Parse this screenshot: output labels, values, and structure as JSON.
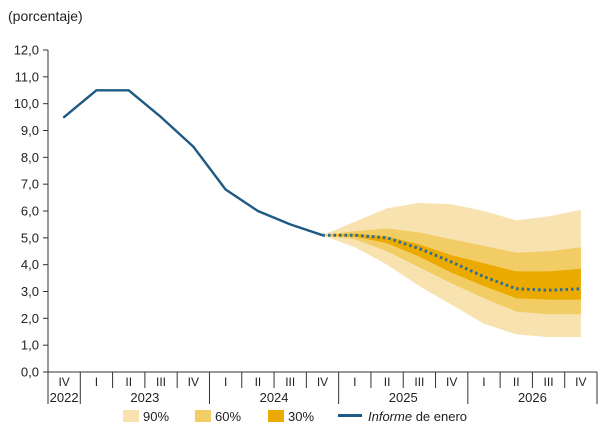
{
  "chart_data": {
    "type": "line",
    "unit_label": "(porcentaje)",
    "ylim": [
      0,
      12
    ],
    "y_ticks": [
      "0,0",
      "1,0",
      "2,0",
      "3,0",
      "4,0",
      "5,0",
      "6,0",
      "7,0",
      "8,0",
      "9,0",
      "10,0",
      "11,0",
      "12,0"
    ],
    "quarters": [
      "IV",
      "I",
      "II",
      "III",
      "IV",
      "I",
      "II",
      "III",
      "IV",
      "I",
      "II",
      "III",
      "IV",
      "I",
      "II",
      "III",
      "IV"
    ],
    "years": [
      {
        "label": "2022",
        "start": 0,
        "end": 0
      },
      {
        "label": "2023",
        "start": 1,
        "end": 4
      },
      {
        "label": "2024",
        "start": 5,
        "end": 8
      },
      {
        "label": "2025",
        "start": 9,
        "end": 12
      },
      {
        "label": "2026",
        "start": 13,
        "end": 16
      }
    ],
    "history": {
      "x": [
        0,
        1,
        2,
        3,
        4,
        5,
        6,
        7,
        8
      ],
      "values": [
        9.5,
        10.5,
        10.5,
        9.5,
        8.4,
        6.8,
        6.0,
        5.5,
        5.1
      ]
    },
    "fan": {
      "x": [
        8,
        9,
        10,
        11,
        12,
        13,
        14,
        15,
        16
      ],
      "bands": [
        {
          "name": "90%",
          "color": "#f8e3b0",
          "upper": [
            5.1,
            5.6,
            6.1,
            6.3,
            6.25,
            6.0,
            5.65,
            5.8,
            6.05
          ],
          "lower": [
            5.1,
            4.65,
            4.0,
            3.2,
            2.5,
            1.8,
            1.4,
            1.3,
            1.3
          ]
        },
        {
          "name": "60%",
          "color": "#f2cd66",
          "upper": [
            5.1,
            5.25,
            5.35,
            5.2,
            4.95,
            4.7,
            4.45,
            4.5,
            4.65
          ],
          "lower": [
            5.1,
            4.95,
            4.5,
            3.9,
            3.3,
            2.75,
            2.25,
            2.15,
            2.15
          ]
        },
        {
          "name": "30%",
          "color": "#ebaa00",
          "upper": [
            5.1,
            5.15,
            5.05,
            4.75,
            4.35,
            4.05,
            3.75,
            3.75,
            3.85
          ],
          "lower": [
            5.1,
            5.05,
            4.8,
            4.3,
            3.7,
            3.2,
            2.75,
            2.7,
            2.7
          ]
        }
      ]
    },
    "projection": {
      "name": "Informe de enero",
      "x": [
        8,
        9,
        10,
        11,
        12,
        13,
        14,
        15,
        16
      ],
      "values": [
        5.1,
        5.1,
        5.0,
        4.6,
        4.1,
        3.55,
        3.1,
        3.05,
        3.1
      ]
    },
    "legend": [
      {
        "label": "90%",
        "kind": "box",
        "color": "#f8e3b0"
      },
      {
        "label": "60%",
        "kind": "box",
        "color": "#f2cd66"
      },
      {
        "label": "30%",
        "kind": "box",
        "color": "#ebaa00"
      },
      {
        "label_italic": "Informe",
        "label_rest": " de enero",
        "kind": "line",
        "color": "#1f5a85"
      }
    ],
    "colors": {
      "line": "#1f5a85",
      "dots": "#2c6e96",
      "axis": "#333333"
    }
  }
}
